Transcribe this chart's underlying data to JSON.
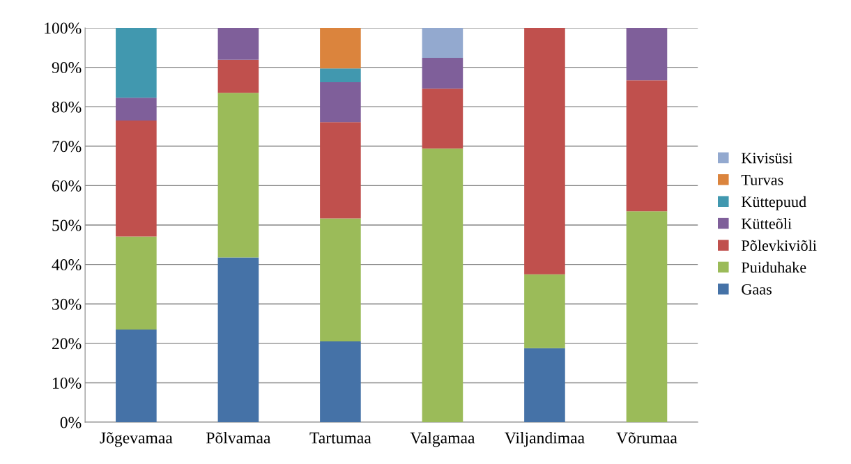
{
  "chart_data": {
    "type": "bar",
    "stacked": true,
    "categories": [
      "Jõgevamaa",
      "Põlvamaa",
      "Tartumaa",
      "Valgamaa",
      "Viljandimaa",
      "Võrumaa"
    ],
    "series": [
      {
        "name": "Gaas",
        "color": "#4572a7",
        "values": [
          23.5,
          41.8,
          20.5,
          0,
          18.8,
          0
        ]
      },
      {
        "name": "Puiduhake",
        "color": "#9bbb59",
        "values": [
          23.6,
          41.7,
          31.2,
          69.4,
          18.7,
          53.5
        ]
      },
      {
        "name": "Põlevkiviõli",
        "color": "#c0504d",
        "values": [
          29.4,
          8.4,
          24.4,
          15.2,
          62.5,
          33.2
        ]
      },
      {
        "name": "Kütteõli",
        "color": "#7f5f9a",
        "values": [
          5.8,
          8.1,
          10.1,
          7.8,
          0,
          13.3
        ]
      },
      {
        "name": "Küttepuud",
        "color": "#4198af",
        "values": [
          17.7,
          0,
          3.5,
          0,
          0,
          0
        ]
      },
      {
        "name": "Turvas",
        "color": "#db843d",
        "values": [
          0,
          0,
          10.3,
          0,
          0,
          0
        ]
      },
      {
        "name": "Kivisüsi",
        "color": "#93a9cf",
        "values": [
          0,
          0,
          0,
          7.6,
          0,
          0
        ]
      }
    ],
    "ylim": [
      0,
      100
    ],
    "yticks": [
      {
        "value": 0,
        "label": "0%"
      },
      {
        "value": 10,
        "label": "10%"
      },
      {
        "value": 20,
        "label": "20%"
      },
      {
        "value": 30,
        "label": "30%"
      },
      {
        "value": 40,
        "label": "40%"
      },
      {
        "value": 50,
        "label": "50%"
      },
      {
        "value": 60,
        "label": "60%"
      },
      {
        "value": 70,
        "label": "70%"
      },
      {
        "value": 80,
        "label": "80%"
      },
      {
        "value": 90,
        "label": "90%"
      },
      {
        "value": 100,
        "label": "100%"
      }
    ],
    "grid": "y",
    "legend": "right"
  }
}
